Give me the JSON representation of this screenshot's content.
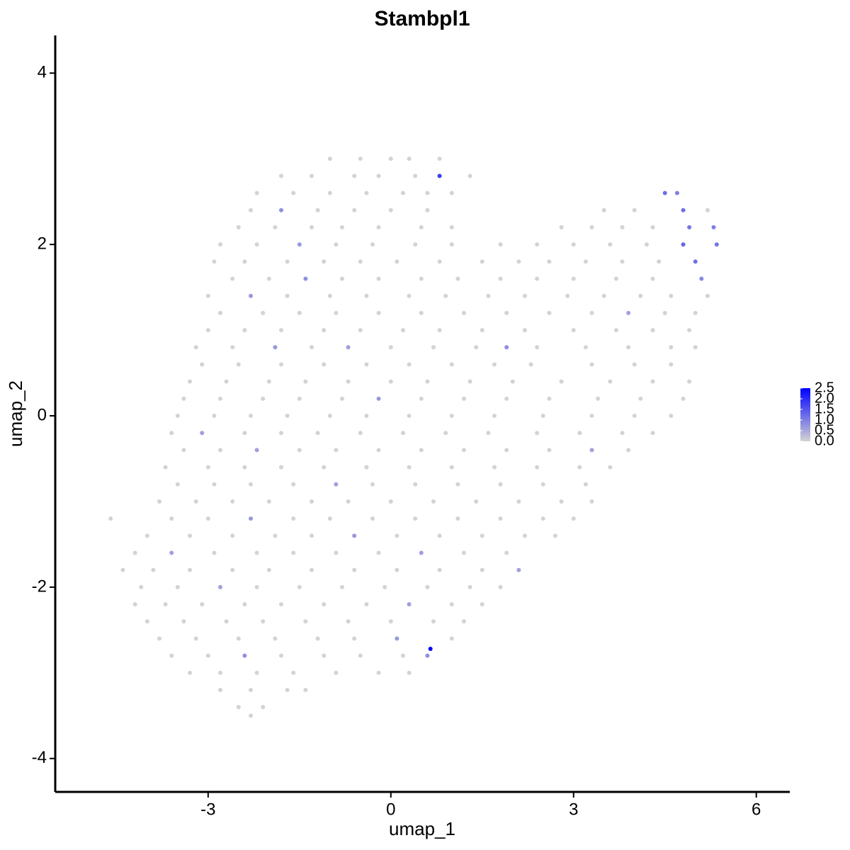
{
  "chart_data": {
    "type": "scatter",
    "title": "Stambpl1",
    "x_label": "umap_1",
    "y_label": "umap_2",
    "xlim": [
      -5.51,
      6.55
    ],
    "ylim": [
      -4.39,
      4.44
    ],
    "xticks": [
      -3,
      0,
      3,
      6
    ],
    "yticks": [
      -4,
      -2,
      0,
      2,
      4
    ],
    "grid": false,
    "low_color": "#d3d3d3",
    "high_color": "#0000ff",
    "clim": [
      0,
      2.5
    ],
    "cticks": [
      {
        "value": 0,
        "label": "0.0"
      },
      {
        "value": 0.5,
        "label": "0.5"
      },
      {
        "value": 1,
        "label": "1.0"
      },
      {
        "value": 1.5,
        "label": "1.5"
      },
      {
        "value": 2,
        "label": "2.0"
      },
      {
        "value": 2.5,
        "label": "2.5"
      }
    ],
    "x": [
      -1.0,
      -0.5,
      0.0,
      0.3,
      0.8,
      -1.8,
      -1.3,
      -0.6,
      -0.2,
      0.4,
      0.8,
      1.3,
      -2.2,
      -1.6,
      -1.0,
      -0.4,
      0.2,
      0.6,
      1.0,
      4.5,
      4.7,
      -2.3,
      -1.8,
      -1.2,
      -0.6,
      0,
      0.6,
      3.5,
      4.0,
      4.8,
      5.2,
      -2.5,
      -1.9,
      -1.3,
      -0.8,
      -0.2,
      0.5,
      1.0,
      2.8,
      3.3,
      3.8,
      4.3,
      4.9,
      5.3,
      -2.8,
      -2.2,
      -1.5,
      -0.9,
      -0.3,
      0.4,
      1.0,
      1.8,
      2.4,
      3.0,
      3.6,
      4.2,
      4.8,
      5.35,
      -2.9,
      -2.4,
      -1.7,
      -1.1,
      -0.5,
      0.1,
      0.8,
      1.5,
      2.1,
      2.6,
      3.2,
      3.8,
      4.4,
      5.0,
      -2.6,
      -2.0,
      -1.4,
      -0.8,
      -0.2,
      0.5,
      1.1,
      1.8,
      2.4,
      3.0,
      3.7,
      4.3,
      5.1,
      -3.0,
      -2.3,
      -1.7,
      -1.0,
      -0.4,
      0.3,
      0.9,
      1.6,
      2.2,
      2.9,
      3.5,
      4.1,
      4.6,
      5.2,
      -2.8,
      -2.1,
      -1.5,
      -0.9,
      -0.2,
      0.5,
      1.2,
      1.9,
      2.6,
      3.3,
      3.9,
      4.5,
      5.0,
      -3.0,
      -2.4,
      -1.8,
      -1.1,
      -0.5,
      0.2,
      0.8,
      1.5,
      2.2,
      3.0,
      3.7,
      4.3,
      4.9,
      -3.2,
      -2.6,
      -1.9,
      -1.3,
      -0.7,
      0,
      0.7,
      1.4,
      1.9,
      2.4,
      3.2,
      3.9,
      4.6,
      5.0,
      -3.1,
      -2.5,
      -1.8,
      -1.1,
      -0.4,
      0.3,
      1.0,
      1.7,
      2.3,
      3.3,
      4.0,
      4.6,
      -3.3,
      -2.7,
      -2.0,
      -1.4,
      -0.7,
      0,
      0.6,
      1.3,
      2.0,
      2.8,
      3.6,
      4.3,
      4.9,
      -3.4,
      -2.8,
      -2.1,
      -1.5,
      -0.8,
      -0.2,
      0.5,
      1.2,
      1.9,
      2.6,
      3.4,
      4.1,
      4.8,
      -3.5,
      -2.9,
      -2.3,
      -1.7,
      -1.0,
      -0.4,
      0.3,
      1.0,
      1.7,
      2.5,
      3.3,
      4.0,
      4.6,
      -3.6,
      -3.1,
      -2.4,
      -1.8,
      -1.2,
      -0.5,
      0.2,
      0.9,
      1.6,
      2.4,
      3.1,
      3.8,
      4.3,
      -3.4,
      -2.8,
      -2.2,
      -1.5,
      -0.9,
      -0.2,
      0.5,
      1.2,
      1.9,
      2.6,
      3.3,
      3.9,
      -3.7,
      -3.0,
      -2.4,
      -1.8,
      -1.1,
      -0.4,
      0.3,
      1.0,
      1.7,
      2.4,
      3.1,
      3.6,
      -3.5,
      -2.9,
      -2.3,
      -1.6,
      -0.9,
      -0.3,
      0.4,
      1.1,
      1.8,
      2.5,
      3.2,
      -3.8,
      -3.2,
      -2.6,
      -2.0,
      -1.3,
      -0.7,
      0,
      0.7,
      1.4,
      2.1,
      2.8,
      3.3,
      -4.6,
      -3.6,
      -3.0,
      -2.3,
      -1.6,
      -1.0,
      -0.3,
      0.4,
      1.1,
      1.8,
      2.5,
      3.0,
      -4.0,
      -3.3,
      -2.6,
      -1.9,
      -1.3,
      -0.6,
      0.1,
      0.8,
      1.5,
      2.2,
      2.7,
      -4.2,
      -3.6,
      -2.9,
      -2.2,
      -1.6,
      -0.9,
      -0.2,
      0.5,
      1.2,
      1.9,
      -4.4,
      -3.9,
      -3.3,
      -2.6,
      -2.0,
      -1.3,
      -0.6,
      0.1,
      0.8,
      1.5,
      2.1,
      -4.1,
      -3.5,
      -2.8,
      -2.2,
      -1.5,
      -0.8,
      -0.1,
      0.6,
      1.3,
      1.8,
      -4.2,
      -3.7,
      -3.1,
      -2.4,
      -1.8,
      -1.1,
      -0.4,
      0.3,
      1.0,
      1.5,
      -4.0,
      -3.4,
      -2.7,
      -2.1,
      -1.4,
      -0.7,
      0,
      0.7,
      1.2,
      -3.8,
      -3.2,
      -2.5,
      -1.9,
      -1.2,
      -0.6,
      0.1,
      1.0,
      0.65,
      -3.6,
      -3.0,
      -2.4,
      -1.8,
      -1.1,
      -0.5,
      0.2,
      0.6,
      -3.3,
      -2.8,
      -2.2,
      -1.6,
      -0.9,
      -0.2,
      0.3,
      -2.8,
      -2.3,
      -1.7,
      -1.4,
      -2.5,
      -2.1,
      -2.3
    ],
    "values": [
      3,
      3,
      3,
      3,
      3,
      2.8,
      2.8,
      2.8,
      2.8,
      2.8,
      2.8,
      2.8,
      2.6,
      2.6,
      2.6,
      2.6,
      2.6,
      2.6,
      2.6,
      2.6,
      2.6,
      2.4,
      2.4,
      2.4,
      2.4,
      2.4,
      2.4,
      2.4,
      2.4,
      2.4,
      2.4,
      2.2,
      2.2,
      2.2,
      2.2,
      2.2,
      2.2,
      2.2,
      2.2,
      2.2,
      2.2,
      2.2,
      2.2,
      2.2,
      2,
      2,
      2,
      2,
      2,
      2,
      2,
      2,
      2,
      2,
      2,
      2,
      2,
      2,
      1.8,
      1.8,
      1.8,
      1.8,
      1.8,
      1.8,
      1.8,
      1.8,
      1.8,
      1.8,
      1.8,
      1.8,
      1.8,
      1.8,
      1.6,
      1.6,
      1.6,
      1.6,
      1.6,
      1.6,
      1.6,
      1.6,
      1.6,
      1.6,
      1.6,
      1.6,
      1.6,
      1.4,
      1.4,
      1.4,
      1.4,
      1.4,
      1.4,
      1.4,
      1.4,
      1.4,
      1.4,
      1.4,
      1.4,
      1.4,
      1.4,
      1.2,
      1.2,
      1.2,
      1.2,
      1.2,
      1.2,
      1.2,
      1.2,
      1.2,
      1.2,
      1.2,
      1.2,
      1.2,
      1,
      1,
      1,
      1,
      1,
      1,
      1,
      1,
      1,
      1,
      1,
      1,
      1,
      0.8,
      0.8,
      0.8,
      0.8,
      0.8,
      0.8,
      0.8,
      0.8,
      0.8,
      0.8,
      0.8,
      0.8,
      0.8,
      0.8,
      0.6,
      0.6,
      0.6,
      0.6,
      0.6,
      0.6,
      0.6,
      0.6,
      0.6,
      0.6,
      0.6,
      0.6,
      0.4,
      0.4,
      0.4,
      0.4,
      0.4,
      0.4,
      0.4,
      0.4,
      0.4,
      0.4,
      0.4,
      0.4,
      0.4,
      0.2,
      0.2,
      0.2,
      0.2,
      0.2,
      0.2,
      0.2,
      0.2,
      0.2,
      0.2,
      0.2,
      0.2,
      0.2,
      0,
      0,
      0,
      0,
      0,
      0,
      0,
      0,
      0,
      0,
      0,
      0,
      0,
      -0.2,
      -0.2,
      -0.2,
      -0.2,
      -0.2,
      -0.2,
      -0.2,
      -0.2,
      -0.2,
      -0.2,
      -0.2,
      -0.2,
      -0.2,
      -0.4,
      -0.4,
      -0.4,
      -0.4,
      -0.4,
      -0.4,
      -0.4,
      -0.4,
      -0.4,
      -0.4,
      -0.4,
      -0.4,
      -0.6,
      -0.6,
      -0.6,
      -0.6,
      -0.6,
      -0.6,
      -0.6,
      -0.6,
      -0.6,
      -0.6,
      -0.6,
      -0.6,
      -0.8,
      -0.8,
      -0.8,
      -0.8,
      -0.8,
      -0.8,
      -0.8,
      -0.8,
      -0.8,
      -0.8,
      -0.8,
      -1,
      -1,
      -1,
      -1,
      -1,
      -1,
      -1,
      -1,
      -1,
      -1,
      -1,
      -1,
      -1.2,
      -1.2,
      -1.2,
      -1.2,
      -1.2,
      -1.2,
      -1.2,
      -1.2,
      -1.2,
      -1.2,
      -1.2,
      -1.2,
      -1.4,
      -1.4,
      -1.4,
      -1.4,
      -1.4,
      -1.4,
      -1.4,
      -1.4,
      -1.4,
      -1.4,
      -1.4,
      -1.6,
      -1.6,
      -1.6,
      -1.6,
      -1.6,
      -1.6,
      -1.6,
      -1.6,
      -1.6,
      -1.6,
      -1.8,
      -1.8,
      -1.8,
      -1.8,
      -1.8,
      -1.8,
      -1.8,
      -1.8,
      -1.8,
      -1.8,
      -1.8,
      -2,
      -2,
      -2,
      -2,
      -2,
      -2,
      -2,
      -2,
      -2,
      -2,
      -2.2,
      -2.2,
      -2.2,
      -2.2,
      -2.2,
      -2.2,
      -2.2,
      -2.2,
      -2.2,
      -2.2,
      -2.4,
      -2.4,
      -2.4,
      -2.4,
      -2.4,
      -2.4,
      -2.4,
      -2.4,
      -2.4,
      -2.6,
      -2.6,
      -2.6,
      -2.6,
      -2.6,
      -2.6,
      -2.6,
      -2.6,
      -2.72,
      -2.8,
      -2.8,
      -2.8,
      -2.8,
      -2.8,
      -2.8,
      -2.8,
      -2.8,
      -3,
      -3,
      -3,
      -3,
      -3,
      -3,
      -3,
      -3.2,
      -3.2,
      -3.2,
      -3.2,
      -3.4,
      -3.4,
      -3.5
    ],
    "expression": [
      0,
      0,
      0,
      0,
      0,
      0,
      0,
      0,
      0,
      0,
      1.8,
      0,
      0,
      0,
      0,
      0,
      0,
      0,
      0,
      1.2,
      1.0,
      0,
      0.8,
      0,
      0,
      0,
      0,
      0,
      0,
      1.2,
      0,
      0,
      0,
      0,
      0,
      0,
      0,
      0,
      0,
      0,
      0,
      0,
      1.1,
      1.0,
      0,
      0,
      0.7,
      0,
      0,
      0,
      0,
      0,
      0,
      0,
      0,
      0,
      1.3,
      1.1,
      0,
      0,
      0,
      0,
      0,
      0,
      0,
      0,
      0,
      0,
      0,
      0,
      0,
      1.2,
      0,
      0,
      0.8,
      0,
      0,
      0,
      0,
      0,
      0,
      0,
      0,
      0,
      0.9,
      0,
      0.7,
      0,
      0,
      0,
      0,
      0,
      0,
      0,
      0,
      0,
      0,
      0,
      0,
      0,
      0,
      0,
      0,
      0,
      0,
      0,
      0,
      0,
      0,
      0.6,
      0,
      0,
      0,
      0,
      0,
      0,
      0,
      0,
      0,
      0,
      0,
      0,
      0,
      0,
      0,
      0,
      0,
      0.7,
      0,
      0.6,
      0,
      0,
      0,
      0.8,
      0,
      0,
      0,
      0,
      0,
      0,
      0,
      0,
      0,
      0,
      0,
      0,
      0,
      0,
      0,
      0,
      0,
      0,
      0,
      0,
      0,
      0,
      0,
      0,
      0,
      0,
      0,
      0,
      0,
      0,
      0,
      0,
      0,
      0,
      0,
      0.7,
      0,
      0,
      0,
      0,
      0,
      0,
      0,
      0,
      0,
      0,
      0,
      0,
      0,
      0,
      0,
      0,
      0,
      0,
      0,
      0,
      0,
      0.6,
      0,
      0,
      0,
      0,
      0,
      0,
      0,
      0,
      0,
      0,
      0,
      0,
      0,
      0.6,
      0,
      0,
      0,
      0,
      0,
      0,
      0,
      0.6,
      0,
      0,
      0,
      0,
      0,
      0,
      0,
      0,
      0,
      0,
      0,
      0,
      0,
      0,
      0,
      0,
      0,
      0.6,
      0,
      0,
      0,
      0,
      0,
      0,
      0,
      0,
      0,
      0,
      0,
      0,
      0,
      0,
      0,
      0,
      0,
      0,
      0,
      0,
      0,
      0.7,
      0,
      0,
      0,
      0,
      0,
      0,
      0,
      0,
      0,
      0,
      0,
      0,
      0,
      0.7,
      0,
      0,
      0,
      0,
      0,
      0,
      0.6,
      0,
      0,
      0,
      0,
      0,
      0.6,
      0,
      0,
      0,
      0,
      0,
      0,
      0,
      0,
      0,
      0,
      0,
      0,
      0.6,
      0,
      0,
      0.6,
      0,
      0,
      0,
      0,
      0,
      0,
      0,
      0,
      0,
      0,
      0,
      0,
      0,
      0,
      0.6,
      0,
      0,
      0,
      0,
      0,
      0,
      0,
      0,
      0,
      0,
      0,
      0,
      0,
      0,
      0,
      0,
      0,
      0.7,
      0,
      2.5,
      0,
      0,
      0.8,
      0,
      0,
      0,
      0,
      0.8,
      0,
      0,
      0,
      0,
      0,
      0,
      0,
      0,
      0,
      0,
      0,
      0,
      0,
      0
    ]
  }
}
